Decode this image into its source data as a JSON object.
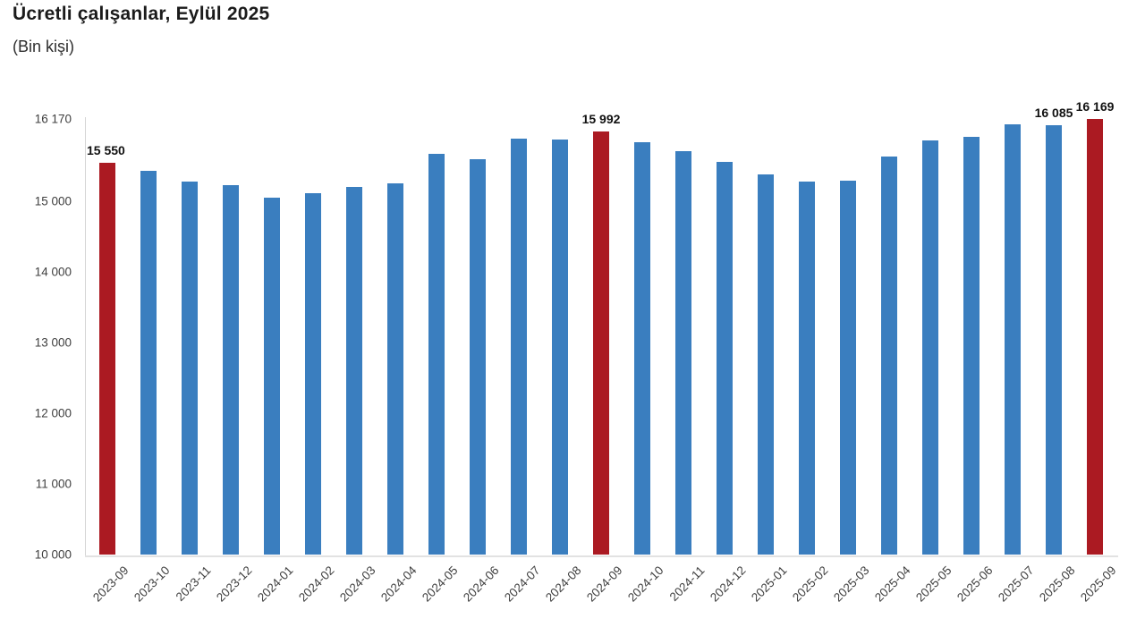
{
  "header": {
    "title": "Ücretli çalışanlar, Eylül 2025",
    "subtitle": "(Bin kişi)"
  },
  "colors": {
    "bar_blue": "#3a7ebf",
    "bar_red": "#ab1a22",
    "axis_line": "#d6d6d6",
    "tick_text": "#3f3f3f",
    "data_label_text": "#111111"
  },
  "chart_data": {
    "type": "bar",
    "title": "Ücretli çalışanlar, Eylül 2025",
    "ylabel": "(Bin kişi)",
    "xlabel": "",
    "grid": false,
    "legend": false,
    "ylim": [
      10000,
      16170
    ],
    "categories": [
      "2023-09",
      "2023-10",
      "2023-11",
      "2023-12",
      "2024-01",
      "2024-02",
      "2024-03",
      "2024-04",
      "2024-05",
      "2024-06",
      "2024-07",
      "2024-08",
      "2024-09",
      "2024-10",
      "2024-11",
      "2024-12",
      "2025-01",
      "2025-02",
      "2025-03",
      "2025-04",
      "2025-05",
      "2025-06",
      "2025-07",
      "2025-08",
      "2025-09"
    ],
    "values": [
      15550,
      15430,
      15280,
      15230,
      15060,
      15120,
      15210,
      15260,
      15680,
      15600,
      15890,
      15880,
      15992,
      15840,
      15720,
      15560,
      15390,
      15280,
      15300,
      15640,
      15870,
      15920,
      16095,
      16085,
      16169
    ],
    "highlighted_categories": [
      "2023-09",
      "2024-09",
      "2025-09"
    ],
    "data_labels": [
      {
        "index": 0,
        "text": "15 550"
      },
      {
        "index": 12,
        "text": "15 992"
      },
      {
        "index": 23,
        "text": "16 085"
      },
      {
        "index": 24,
        "text": "16 169"
      }
    ],
    "y_ticks": [
      {
        "label": "16 170",
        "value": 16170
      },
      {
        "label": "15 000",
        "value": 15000
      },
      {
        "label": "14 000",
        "value": 14000
      },
      {
        "label": "13 000",
        "value": 13000
      },
      {
        "label": "12 000",
        "value": 12000
      },
      {
        "label": "11 000",
        "value": 11000
      },
      {
        "label": "10 000",
        "value": 10000
      }
    ]
  }
}
